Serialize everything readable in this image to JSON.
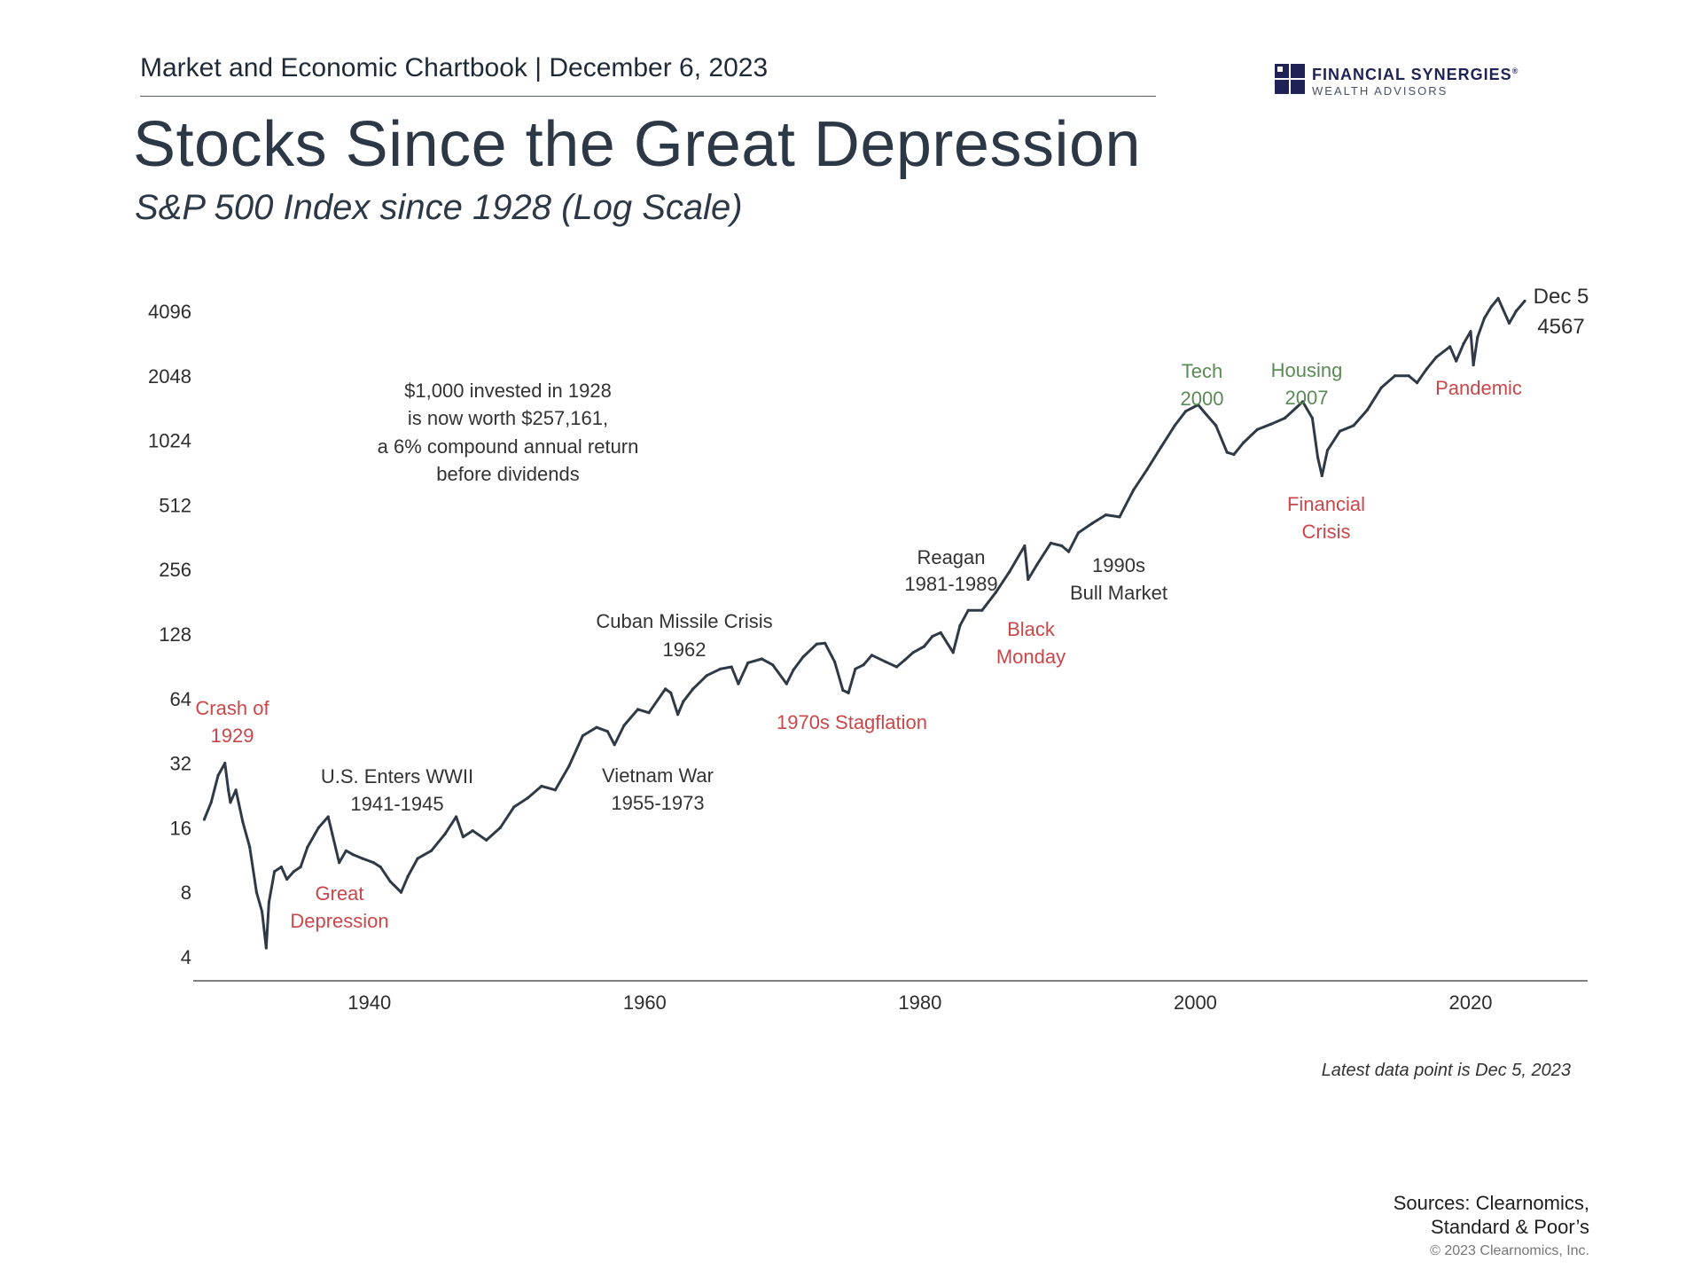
{
  "header": {
    "chartbook": "Market and Economic Chartbook | December 6, 2023",
    "title": "Stocks Since the Great Depression",
    "subtitle": "S&P 500 Index since 1928 (Log Scale)"
  },
  "logo": {
    "name": "FINANCIAL SYNERGIES",
    "registered": "®",
    "sub": "WEALTH ADVISORS"
  },
  "chart_data": {
    "type": "line",
    "title": "Stocks Since the Great Depression",
    "subtitle": "S&P 500 Index since 1928 (Log Scale)",
    "y_scale": "log2",
    "ylim": [
      4,
      5500
    ],
    "xlim": [
      1927.2,
      2028.5
    ],
    "y_ticks": [
      4,
      8,
      16,
      32,
      64,
      128,
      256,
      512,
      1024,
      2048,
      4096
    ],
    "y_tick_labels": [
      "4",
      "8",
      "16",
      "32",
      "64",
      "128",
      "256",
      "512",
      "1024",
      "2048",
      "4096"
    ],
    "x_ticks": [
      1940,
      1960,
      1980,
      2000,
      2020
    ],
    "x_tick_labels": [
      "1940",
      "1960",
      "1980",
      "2000",
      "2020"
    ],
    "series": [
      {
        "name": "S&P 500 Index",
        "color": "#2f3a46",
        "x": [
          1928.0,
          1928.5,
          1929.0,
          1929.5,
          1929.75,
          1929.9,
          1930.3,
          1930.8,
          1931.3,
          1931.8,
          1932.2,
          1932.5,
          1932.7,
          1933.1,
          1933.6,
          1934.0,
          1934.5,
          1935.0,
          1935.5,
          1936.3,
          1937.0,
          1937.3,
          1937.8,
          1938.3,
          1938.8,
          1939.5,
          1940.3,
          1940.8,
          1941.5,
          1942.3,
          1942.8,
          1943.5,
          1944.5,
          1945.5,
          1946.3,
          1946.8,
          1947.5,
          1948.5,
          1949.5,
          1950.5,
          1951.5,
          1952.5,
          1953.5,
          1954.5,
          1955.5,
          1956.5,
          1957.3,
          1957.8,
          1958.5,
          1959.5,
          1960.3,
          1961.5,
          1961.9,
          1962.4,
          1962.8,
          1963.5,
          1964.5,
          1965.5,
          1966.3,
          1966.8,
          1967.5,
          1968.5,
          1969.3,
          1970.3,
          1970.8,
          1971.5,
          1972.5,
          1973.1,
          1973.8,
          1974.4,
          1974.8,
          1975.3,
          1975.9,
          1976.5,
          1977.5,
          1978.3,
          1978.9,
          1979.5,
          1980.3,
          1980.9,
          1981.5,
          1982.4,
          1982.9,
          1983.5,
          1984.5,
          1985.5,
          1986.5,
          1987.6,
          1987.85,
          1988.5,
          1989.5,
          1990.3,
          1990.8,
          1991.5,
          1992.5,
          1993.5,
          1994.5,
          1995.5,
          1996.5,
          1997.5,
          1998.5,
          1999.3,
          2000.2,
          2000.8,
          2001.5,
          2002.3,
          2002.8,
          2003.5,
          2004.5,
          2005.5,
          2006.5,
          2007.8,
          2008.5,
          2008.9,
          2009.2,
          2009.6,
          2010.5,
          2011.5,
          2012.5,
          2013.5,
          2014.5,
          2015.5,
          2016.1,
          2016.8,
          2017.5,
          2018.5,
          2018.95,
          2019.5,
          2020.0,
          2020.2,
          2020.5,
          2021.0,
          2021.5,
          2022.0,
          2022.8,
          2023.3,
          2023.93
        ],
        "values": [
          17.5,
          21,
          28,
          32,
          24,
          21,
          24,
          17,
          13,
          8,
          6.5,
          4.4,
          7.2,
          10,
          10.5,
          9.2,
          10,
          10.5,
          13,
          16,
          18,
          15,
          11,
          12.5,
          12,
          11.5,
          11,
          10.5,
          9,
          8,
          9.5,
          11.5,
          12.5,
          15,
          18,
          14.5,
          15.5,
          14,
          16,
          20,
          22,
          25,
          24,
          31,
          43,
          47,
          45,
          39,
          48,
          57,
          55,
          71,
          68,
          54,
          62,
          71,
          82,
          88,
          90,
          75,
          94,
          98,
          92,
          75,
          87,
          100,
          115,
          116,
          95,
          70,
          68,
          88,
          92,
          102,
          95,
          90,
          97,
          105,
          112,
          125,
          130,
          105,
          140,
          165,
          165,
          200,
          250,
          330,
          230,
          270,
          340,
          330,
          310,
          380,
          420,
          460,
          450,
          600,
          750,
          950,
          1200,
          1400,
          1500,
          1350,
          1200,
          900,
          880,
          1000,
          1150,
          1220,
          1300,
          1550,
          1300,
          850,
          700,
          920,
          1130,
          1200,
          1420,
          1800,
          2050,
          2050,
          1900,
          2200,
          2500,
          2800,
          2400,
          2900,
          3300,
          2300,
          3100,
          3800,
          4300,
          4700,
          3600,
          4100,
          4567
        ]
      }
    ],
    "end_label": {
      "date": "Dec 5",
      "value": "4567"
    },
    "annotations": {
      "crash_1929": {
        "line1": "Crash of",
        "line2": "1929",
        "color": "#c8474a"
      },
      "great_depression": {
        "line1": "Great",
        "line2": "Depression",
        "color": "#c8474a"
      },
      "wwii": {
        "line1": "U.S. Enters WWII",
        "line2": "1941-1945",
        "color": "#333333"
      },
      "invested": {
        "line1": "$1,000 invested in 1928",
        "line2": "is now worth $257,161,",
        "line3": "a 6% compound annual return",
        "line4": "before dividends",
        "color": "#333333"
      },
      "cuban": {
        "line1": "Cuban Missile Crisis",
        "line2": "1962",
        "color": "#333333"
      },
      "vietnam": {
        "line1": "Vietnam War",
        "line2": "1955-1973",
        "color": "#333333"
      },
      "stagflation": {
        "line1": "1970s Stagflation",
        "color": "#c8474a"
      },
      "reagan": {
        "line1": "Reagan",
        "line2": "1981-1989",
        "color": "#333333"
      },
      "black_monday": {
        "line1": "Black",
        "line2": "Monday",
        "color": "#c8474a"
      },
      "bull_90s": {
        "line1": "1990s",
        "line2": "Bull Market",
        "color": "#333333"
      },
      "tech": {
        "line1": "Tech",
        "line2": "2000",
        "color": "#5a8a55"
      },
      "housing": {
        "line1": "Housing",
        "line2": "2007",
        "color": "#5a8a55"
      },
      "financial_crisis": {
        "line1": "Financial",
        "line2": "Crisis",
        "color": "#c8474a"
      },
      "pandemic": {
        "line1": "Pandemic",
        "color": "#c8474a"
      }
    },
    "latest_note": "Latest data point is Dec 5, 2023",
    "grid": false
  },
  "footer": {
    "sources_line1": "Sources: Clearnomics,",
    "sources_line2": "Standard & Poor’s",
    "copyright": "© 2023 Clearnomics, Inc."
  }
}
